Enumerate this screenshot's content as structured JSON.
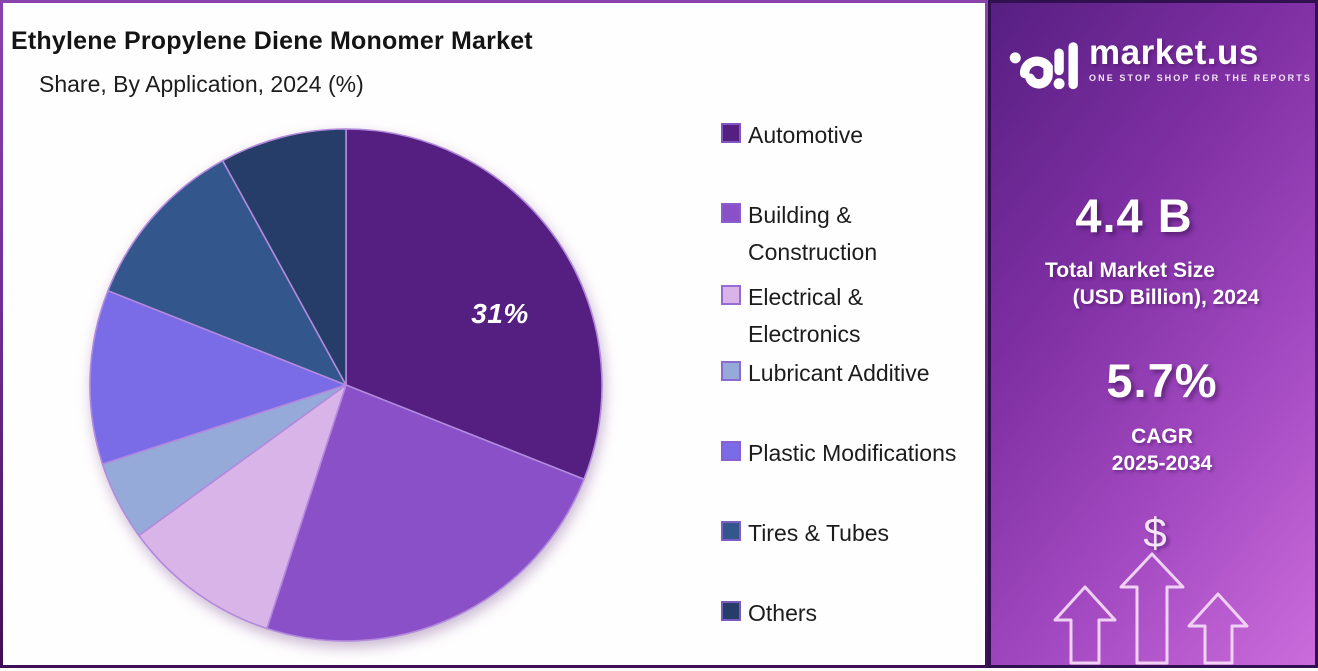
{
  "panel": {
    "title": "Ethylene Propylene Diene Monomer Market",
    "subtitle": "Share, By Application, 2024 (%)"
  },
  "chart_data": {
    "type": "pie",
    "title": "Ethylene Propylene Diene Monomer Market Share, By Application, 2024 (%)",
    "unit": "%",
    "categories": [
      "Automotive",
      "Building & Construction",
      "Electrical & Electronics",
      "Lubricant Additive",
      "Plastic Modifications",
      "Tires & Tubes",
      "Others"
    ],
    "values": [
      31,
      24,
      10,
      5,
      11,
      11,
      8
    ],
    "colors": [
      "#541f80",
      "#8a50c8",
      "#d8b4e8",
      "#95aad9",
      "#7a6ce6",
      "#33568c",
      "#253d68"
    ],
    "slice_border_color": "#b289dd",
    "start_position": "top",
    "direction": "clockwise",
    "legend_position": "right",
    "visible_data_labels": [
      {
        "category": "Automotive",
        "text": "31%"
      }
    ]
  },
  "sidebar": {
    "brand": {
      "name": "market.us",
      "tagline": "ONE STOP SHOP FOR THE REPORTS"
    },
    "market_size": {
      "value": "4.4 B",
      "label_line1": "Total Market Size",
      "label_line2": "(USD Billion), 2024"
    },
    "cagr": {
      "value": "5.7%",
      "label_line1": "CAGR",
      "label_line2": "2025-2034"
    },
    "growth_graphic": {
      "dollar_symbol": "$"
    },
    "colors": {
      "gradient_start": "#571f82",
      "gradient_end": "#cb6cdb",
      "border": "#31104f"
    }
  }
}
